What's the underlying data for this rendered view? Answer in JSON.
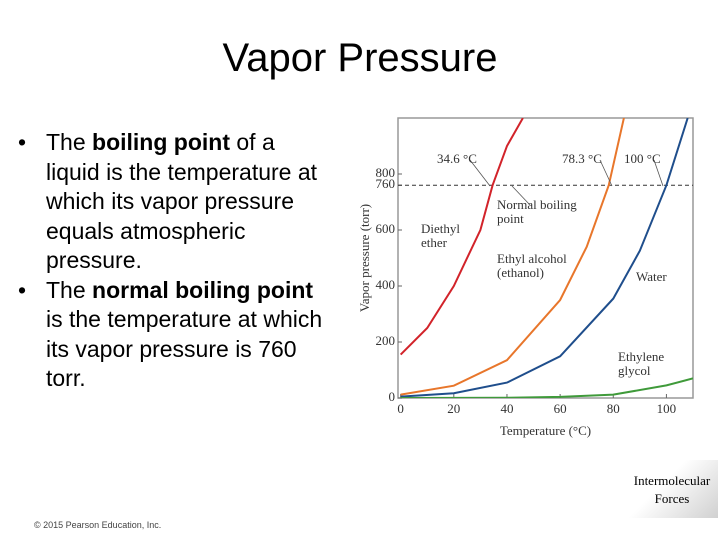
{
  "title": "Vapor Pressure",
  "bullets": [
    [
      {
        "text": "The "
      },
      {
        "text": "boiling point",
        "bold": true
      },
      {
        "text": " of a liquid is the temperature at which its vapor pressure equals atmospheric pressure."
      }
    ],
    [
      {
        "text": "The "
      },
      {
        "text": "normal boiling point",
        "bold": true
      },
      {
        "text": " is the temperature at which its vapor pressure is 760 torr."
      }
    ]
  ],
  "corner_label": "Intermolecular\nForces",
  "footer": "© 2015 Pearson Education, Inc.",
  "chart_data": {
    "type": "line",
    "x_label": "Temperature (°C)",
    "y_label": "Vapor pressure (torr)",
    "xlim": [
      -1,
      110
    ],
    "xticks": [
      0,
      20,
      40,
      60,
      80,
      100
    ],
    "ylim": [
      0,
      1000
    ],
    "yticks": [
      0,
      200,
      400,
      600,
      760,
      800
    ],
    "reference_line": 760,
    "annotations": [
      "34.6 °C",
      "78.3 °C",
      "100 °C",
      "Normal boiling\npoint"
    ],
    "series": [
      {
        "name": "Diethyl\nether",
        "color": "#d2232a",
        "x": [
          0,
          10,
          20,
          30,
          34.6,
          40,
          46
        ],
        "values": [
          155,
          250,
          400,
          600,
          760,
          900,
          1000
        ]
      },
      {
        "name": "Ethyl alcohol\n(ethanol)",
        "color": "#e8762b",
        "x": [
          0,
          20,
          40,
          60,
          70,
          78.3,
          84
        ],
        "values": [
          12,
          44,
          135,
          350,
          540,
          760,
          1000
        ]
      },
      {
        "name": "Water",
        "color": "#1f4e8c",
        "x": [
          0,
          20,
          40,
          60,
          80,
          90,
          100,
          108
        ],
        "values": [
          5,
          17,
          55,
          149,
          355,
          526,
          760,
          1000
        ]
      },
      {
        "name": "Ethylene\nglycol",
        "color": "#3f9a3a",
        "x": [
          0,
          40,
          60,
          80,
          100,
          110
        ],
        "values": [
          0,
          1,
          4,
          12,
          45,
          70
        ]
      }
    ]
  }
}
